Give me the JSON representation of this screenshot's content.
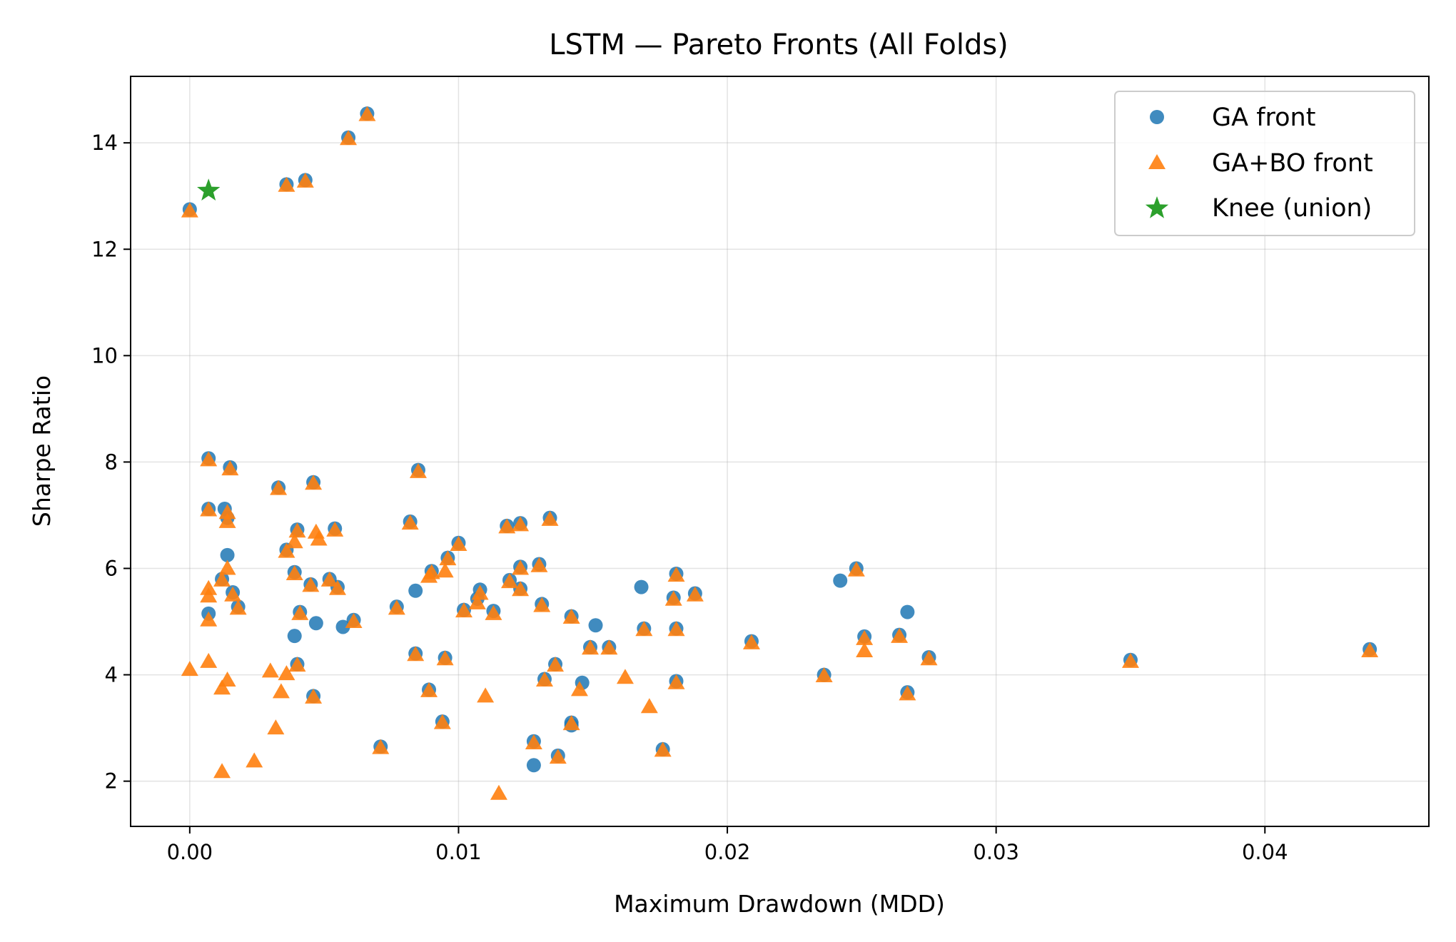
{
  "chart_data": {
    "type": "scatter",
    "title": "LSTM — Pareto Fronts (All Folds)",
    "xlabel": "Maximum Drawdown (MDD)",
    "ylabel": "Sharpe Ratio",
    "xlim": [
      -0.0022,
      0.0461
    ],
    "ylim": [
      1.15,
      15.25
    ],
    "x_ticks": [
      0.0,
      0.01,
      0.02,
      0.03,
      0.04
    ],
    "x_tick_labels": [
      "0.00",
      "0.01",
      "0.02",
      "0.03",
      "0.04"
    ],
    "y_ticks": [
      2,
      4,
      6,
      8,
      10,
      12,
      14
    ],
    "y_tick_labels": [
      "2",
      "4",
      "6",
      "8",
      "10",
      "12",
      "14"
    ],
    "grid": true,
    "legend_position": "top-right",
    "series": [
      {
        "name": "GA front",
        "marker": "circle",
        "color": "#1f77b4",
        "points": [
          [
            0.0,
            12.75
          ],
          [
            0.0036,
            13.22
          ],
          [
            0.0043,
            13.3
          ],
          [
            0.0059,
            14.1
          ],
          [
            0.0066,
            14.55
          ],
          [
            0.0007,
            8.07
          ],
          [
            0.0015,
            7.9
          ],
          [
            0.0007,
            7.12
          ],
          [
            0.0013,
            7.12
          ],
          [
            0.0014,
            6.95
          ],
          [
            0.0014,
            6.25
          ],
          [
            0.0012,
            5.8
          ],
          [
            0.0016,
            5.55
          ],
          [
            0.0018,
            5.28
          ],
          [
            0.0007,
            5.15
          ],
          [
            0.0033,
            7.52
          ],
          [
            0.0046,
            7.62
          ],
          [
            0.0036,
            6.35
          ],
          [
            0.004,
            6.73
          ],
          [
            0.0039,
            5.93
          ],
          [
            0.0045,
            5.7
          ],
          [
            0.0041,
            5.18
          ],
          [
            0.0039,
            4.73
          ],
          [
            0.004,
            4.2
          ],
          [
            0.0046,
            3.6
          ],
          [
            0.0047,
            4.97
          ],
          [
            0.0052,
            5.8
          ],
          [
            0.0054,
            6.75
          ],
          [
            0.0055,
            5.65
          ],
          [
            0.0057,
            4.9
          ],
          [
            0.0061,
            5.03
          ],
          [
            0.0071,
            2.65
          ],
          [
            0.0077,
            5.28
          ],
          [
            0.0082,
            6.88
          ],
          [
            0.0085,
            7.85
          ],
          [
            0.0084,
            5.58
          ],
          [
            0.0084,
            4.4
          ],
          [
            0.009,
            5.95
          ],
          [
            0.0089,
            3.72
          ],
          [
            0.0094,
            3.12
          ],
          [
            0.0095,
            4.32
          ],
          [
            0.0096,
            6.2
          ],
          [
            0.01,
            6.48
          ],
          [
            0.0102,
            5.22
          ],
          [
            0.0108,
            5.6
          ],
          [
            0.0107,
            5.43
          ],
          [
            0.0113,
            5.2
          ],
          [
            0.0118,
            6.8
          ],
          [
            0.0123,
            6.85
          ],
          [
            0.0119,
            5.78
          ],
          [
            0.0123,
            6.03
          ],
          [
            0.0123,
            5.62
          ],
          [
            0.0128,
            2.75
          ],
          [
            0.0128,
            2.3
          ],
          [
            0.013,
            6.08
          ],
          [
            0.0131,
            5.33
          ],
          [
            0.0132,
            3.92
          ],
          [
            0.0134,
            6.95
          ],
          [
            0.0136,
            4.2
          ],
          [
            0.0137,
            2.48
          ],
          [
            0.0142,
            5.1
          ],
          [
            0.0142,
            3.1
          ],
          [
            0.0142,
            3.05
          ],
          [
            0.0146,
            3.85
          ],
          [
            0.0149,
            4.52
          ],
          [
            0.0151,
            4.93
          ],
          [
            0.0156,
            4.52
          ],
          [
            0.0168,
            5.65
          ],
          [
            0.0169,
            4.87
          ],
          [
            0.0176,
            2.6
          ],
          [
            0.0181,
            5.9
          ],
          [
            0.018,
            5.45
          ],
          [
            0.0181,
            4.87
          ],
          [
            0.0181,
            3.88
          ],
          [
            0.0188,
            5.53
          ],
          [
            0.0209,
            4.63
          ],
          [
            0.0236,
            4.0
          ],
          [
            0.0242,
            5.77
          ],
          [
            0.0248,
            6.0
          ],
          [
            0.0251,
            4.72
          ],
          [
            0.0264,
            4.75
          ],
          [
            0.0267,
            5.18
          ],
          [
            0.0267,
            3.67
          ],
          [
            0.0275,
            4.33
          ],
          [
            0.035,
            4.28
          ],
          [
            0.0439,
            4.48
          ]
        ]
      },
      {
        "name": "GA+BO front",
        "marker": "triangle",
        "color": "#ff7f0e",
        "points": [
          [
            0.0,
            12.72
          ],
          [
            0.0036,
            13.2
          ],
          [
            0.0043,
            13.28
          ],
          [
            0.0059,
            14.08
          ],
          [
            0.0066,
            14.53
          ],
          [
            0.0007,
            8.04
          ],
          [
            0.0015,
            7.87
          ],
          [
            0.0007,
            7.1
          ],
          [
            0.0014,
            7.05
          ],
          [
            0.0014,
            6.88
          ],
          [
            0.0014,
            6.0
          ],
          [
            0.0007,
            5.62
          ],
          [
            0.0007,
            5.48
          ],
          [
            0.0007,
            5.03
          ],
          [
            0.0012,
            5.78
          ],
          [
            0.0016,
            5.5
          ],
          [
            0.0018,
            5.25
          ],
          [
            0.0,
            4.1
          ],
          [
            0.0007,
            4.25
          ],
          [
            0.0012,
            3.75
          ],
          [
            0.0014,
            3.9
          ],
          [
            0.0012,
            2.18
          ],
          [
            0.0024,
            2.38
          ],
          [
            0.003,
            4.07
          ],
          [
            0.0032,
            3.0
          ],
          [
            0.0034,
            3.68
          ],
          [
            0.0036,
            4.02
          ],
          [
            0.0033,
            7.5
          ],
          [
            0.0046,
            7.6
          ],
          [
            0.0036,
            6.32
          ],
          [
            0.0039,
            6.5
          ],
          [
            0.004,
            6.7
          ],
          [
            0.0039,
            5.9
          ],
          [
            0.0045,
            5.68
          ],
          [
            0.0041,
            5.15
          ],
          [
            0.004,
            4.18
          ],
          [
            0.0046,
            3.58
          ],
          [
            0.0047,
            6.68
          ],
          [
            0.0048,
            6.55
          ],
          [
            0.0052,
            5.78
          ],
          [
            0.0054,
            6.72
          ],
          [
            0.0055,
            5.62
          ],
          [
            0.0061,
            5.0
          ],
          [
            0.0071,
            2.63
          ],
          [
            0.0077,
            5.25
          ],
          [
            0.0082,
            6.85
          ],
          [
            0.0085,
            7.82
          ],
          [
            0.0084,
            4.38
          ],
          [
            0.0089,
            5.85
          ],
          [
            0.009,
            5.92
          ],
          [
            0.0089,
            3.7
          ],
          [
            0.0094,
            3.1
          ],
          [
            0.0095,
            4.3
          ],
          [
            0.0095,
            5.95
          ],
          [
            0.0096,
            6.18
          ],
          [
            0.01,
            6.45
          ],
          [
            0.0102,
            5.2
          ],
          [
            0.0107,
            5.35
          ],
          [
            0.0108,
            5.53
          ],
          [
            0.011,
            3.6
          ],
          [
            0.0113,
            5.15
          ],
          [
            0.0115,
            1.77
          ],
          [
            0.0118,
            6.78
          ],
          [
            0.0123,
            6.82
          ],
          [
            0.0119,
            5.75
          ],
          [
            0.0123,
            6.0
          ],
          [
            0.0123,
            5.6
          ],
          [
            0.0128,
            2.72
          ],
          [
            0.013,
            6.05
          ],
          [
            0.0131,
            5.3
          ],
          [
            0.0132,
            3.9
          ],
          [
            0.0134,
            6.92
          ],
          [
            0.0136,
            4.18
          ],
          [
            0.0137,
            2.45
          ],
          [
            0.0142,
            5.08
          ],
          [
            0.0142,
            3.08
          ],
          [
            0.0145,
            3.72
          ],
          [
            0.0149,
            4.5
          ],
          [
            0.0156,
            4.5
          ],
          [
            0.0162,
            3.95
          ],
          [
            0.0169,
            4.85
          ],
          [
            0.0171,
            3.4
          ],
          [
            0.0176,
            2.58
          ],
          [
            0.0181,
            5.87
          ],
          [
            0.018,
            5.42
          ],
          [
            0.0181,
            4.85
          ],
          [
            0.0181,
            3.85
          ],
          [
            0.0188,
            5.5
          ],
          [
            0.0209,
            4.6
          ],
          [
            0.0236,
            3.98
          ],
          [
            0.0248,
            5.97
          ],
          [
            0.0251,
            4.68
          ],
          [
            0.0251,
            4.45
          ],
          [
            0.0264,
            4.72
          ],
          [
            0.0267,
            3.64
          ],
          [
            0.0275,
            4.3
          ],
          [
            0.035,
            4.25
          ],
          [
            0.0439,
            4.45
          ]
        ]
      },
      {
        "name": "Knee (union)",
        "marker": "star",
        "color": "#2ca02c",
        "points": [
          [
            0.0007,
            13.1
          ]
        ]
      }
    ]
  }
}
